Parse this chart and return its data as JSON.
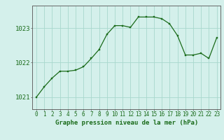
{
  "x": [
    0,
    1,
    2,
    3,
    4,
    5,
    6,
    7,
    8,
    9,
    10,
    11,
    12,
    13,
    14,
    15,
    16,
    17,
    18,
    19,
    20,
    21,
    22,
    23
  ],
  "y": [
    1021.0,
    1021.3,
    1021.55,
    1021.75,
    1021.75,
    1021.78,
    1021.88,
    1022.12,
    1022.38,
    1022.82,
    1023.07,
    1023.07,
    1023.02,
    1023.32,
    1023.32,
    1023.32,
    1023.27,
    1023.12,
    1022.78,
    1022.22,
    1022.22,
    1022.27,
    1022.12,
    1022.72
  ],
  "xlabel": "Graphe pression niveau de la mer (hPa)",
  "yticks": [
    1021,
    1022,
    1023
  ],
  "xticks": [
    0,
    1,
    2,
    3,
    4,
    5,
    6,
    7,
    8,
    9,
    10,
    11,
    12,
    13,
    14,
    15,
    16,
    17,
    18,
    19,
    20,
    21,
    22,
    23
  ],
  "ylim": [
    1020.65,
    1023.65
  ],
  "xlim": [
    -0.5,
    23.5
  ],
  "line_color": "#1a6b1a",
  "marker_color": "#1a6b1a",
  "bg_color": "#d4f0eb",
  "grid_color": "#a8d8cc",
  "xlabel_color": "#1a6b1a",
  "tick_color": "#1a6b1a",
  "axis_color": "#666666",
  "xlabel_fontsize": 6.5,
  "ytick_fontsize": 6.5,
  "xtick_fontsize": 5.5
}
